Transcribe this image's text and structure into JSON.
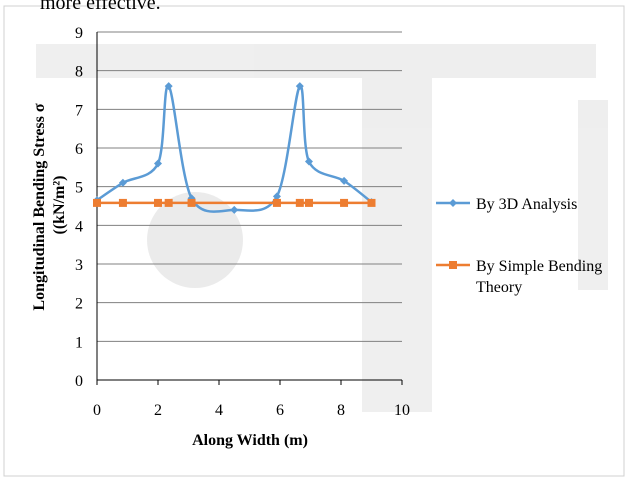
{
  "page": {
    "top_text": "more effective."
  },
  "colors": {
    "series_3d": "#5B9BD5",
    "series_simple": "#ED7D31",
    "grid": "#808080",
    "axis": "#000000"
  },
  "chart_data": {
    "type": "line",
    "title": "",
    "xlabel": "Along Width (m)",
    "ylabel_line1": "Longitudinal  Bending Stress σ",
    "ylabel_line2": "((kN/m²)",
    "xlim": [
      0,
      10
    ],
    "ylim": [
      0,
      9
    ],
    "xticks": [
      "0",
      "2",
      "4",
      "6",
      "8",
      "10"
    ],
    "yticks": [
      "0",
      "1",
      "2",
      "3",
      "4",
      "5",
      "6",
      "7",
      "8",
      "9"
    ],
    "xtick_values": [
      0,
      2,
      4,
      6,
      8,
      10
    ],
    "ytick_values": [
      0,
      1,
      2,
      3,
      4,
      5,
      6,
      7,
      8,
      9
    ],
    "grid": "horizontal",
    "legend_position": "right",
    "series": [
      {
        "name": "By 3D Analysis",
        "marker": "diamond",
        "smooth": true,
        "x": [
          0,
          0.85,
          2.0,
          2.35,
          3.1,
          4.5,
          5.9,
          6.65,
          6.95,
          8.1,
          9.0
        ],
        "y": [
          4.65,
          5.1,
          5.6,
          7.6,
          4.7,
          4.4,
          4.75,
          7.6,
          5.65,
          5.15,
          4.6
        ]
      },
      {
        "name": "By Simple Bending Theory",
        "marker": "square",
        "smooth": false,
        "x": [
          0,
          0.85,
          2.0,
          2.35,
          3.1,
          5.9,
          6.65,
          6.95,
          8.1,
          9.0
        ],
        "y": [
          4.58,
          4.58,
          4.58,
          4.58,
          4.58,
          4.58,
          4.58,
          4.58,
          4.58,
          4.58
        ]
      }
    ]
  }
}
